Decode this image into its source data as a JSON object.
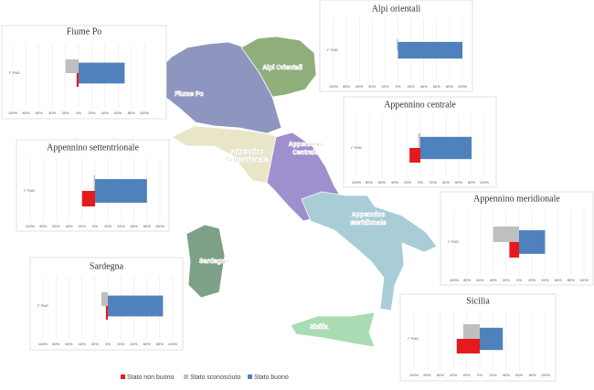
{
  "legend": [
    {
      "name": "Stato non buono",
      "color": "#e41a1c"
    },
    {
      "name": "Stato sconosciuto",
      "color": "#bfbfbf"
    },
    {
      "name": "Stato buono",
      "color": "#4f81bd"
    }
  ],
  "map": {
    "regions": [
      {
        "lines": [
          "Fiume Po"
        ]
      },
      {
        "lines": [
          "Alpi Orientali"
        ]
      },
      {
        "lines": [
          "Appennino",
          "Settentrionale"
        ]
      },
      {
        "lines": [
          "Appennino",
          "Centrale"
        ]
      },
      {
        "lines": [
          "Appennino",
          "Meridionale"
        ]
      },
      {
        "lines": [
          "Sardegna"
        ]
      },
      {
        "lines": [
          "Sicilia"
        ]
      }
    ]
  },
  "chart_data": [
    {
      "type": "bar",
      "title": "Fiume Po",
      "categories": [
        "I° PdG"
      ],
      "series": [
        {
          "values": [
            -3
          ]
        },
        {
          "values": [
            -20
          ]
        },
        {
          "values": [
            70
          ]
        }
      ],
      "xlim": [
        -100,
        100
      ],
      "xticks": [
        {
          "value": -100,
          "label": "100%"
        },
        {
          "value": -80,
          "label": "80%"
        },
        {
          "value": -60,
          "label": "60%"
        },
        {
          "value": -40,
          "label": "40%"
        },
        {
          "value": -20,
          "label": "20%"
        },
        {
          "value": 0,
          "label": "0%"
        },
        {
          "value": 20,
          "label": "20%"
        },
        {
          "value": 40,
          "label": "40%"
        },
        {
          "value": 60,
          "label": "60%"
        },
        {
          "value": 80,
          "label": "80%"
        },
        {
          "value": 100,
          "label": "100%"
        }
      ]
    },
    {
      "type": "bar",
      "title": "Alpi orientali",
      "categories": [
        "I° PdG"
      ],
      "series": [
        {
          "values": [
            0
          ]
        },
        {
          "values": [
            -2
          ]
        },
        {
          "values": [
            100
          ]
        }
      ],
      "xlim": [
        -100,
        100
      ],
      "xticks": [
        {
          "value": -100,
          "label": "100%"
        },
        {
          "value": -80,
          "label": "80%"
        },
        {
          "value": -60,
          "label": "60%"
        },
        {
          "value": -40,
          "label": "40%"
        },
        {
          "value": -20,
          "label": "20%"
        },
        {
          "value": 0,
          "label": "0%"
        },
        {
          "value": 20,
          "label": "20%"
        },
        {
          "value": 40,
          "label": "40%"
        },
        {
          "value": 60,
          "label": "60%"
        },
        {
          "value": 80,
          "label": "80%"
        },
        {
          "value": 100,
          "label": "100%"
        }
      ]
    },
    {
      "type": "bar",
      "title": "Appennino centrale",
      "categories": [
        "I° PdG"
      ],
      "series": [
        {
          "values": [
            -17
          ]
        },
        {
          "values": [
            -3
          ]
        },
        {
          "values": [
            80
          ]
        }
      ],
      "xlim": [
        -100,
        100
      ],
      "xticks": [
        {
          "value": -100,
          "label": "100%"
        },
        {
          "value": -80,
          "label": "80%"
        },
        {
          "value": -60,
          "label": "60%"
        },
        {
          "value": -40,
          "label": "40%"
        },
        {
          "value": -20,
          "label": "20%"
        },
        {
          "value": 0,
          "label": "0%"
        },
        {
          "value": 20,
          "label": "20%"
        },
        {
          "value": 40,
          "label": "40%"
        },
        {
          "value": 60,
          "label": "60%"
        },
        {
          "value": 80,
          "label": "80%"
        },
        {
          "value": 100,
          "label": "100%"
        }
      ]
    },
    {
      "type": "bar",
      "title": "Appennino settentrionale",
      "categories": [
        "I° PdG"
      ],
      "series": [
        {
          "values": [
            -20
          ]
        },
        {
          "values": [
            -2
          ]
        },
        {
          "values": [
            80
          ]
        }
      ],
      "xlim": [
        -100,
        100
      ],
      "xticks": [
        {
          "value": -100,
          "label": "100%"
        },
        {
          "value": -80,
          "label": "80%"
        },
        {
          "value": -60,
          "label": "60%"
        },
        {
          "value": -40,
          "label": "40%"
        },
        {
          "value": -20,
          "label": "20%"
        },
        {
          "value": 0,
          "label": "0%"
        },
        {
          "value": 20,
          "label": "20%"
        },
        {
          "value": 40,
          "label": "40%"
        },
        {
          "value": 60,
          "label": "60%"
        },
        {
          "value": 80,
          "label": "80%"
        },
        {
          "value": 100,
          "label": "100%"
        }
      ]
    },
    {
      "type": "bar",
      "title": "Appennino meridionale",
      "categories": [
        "I° PdG"
      ],
      "series": [
        {
          "values": [
            -15
          ]
        },
        {
          "values": [
            -40
          ]
        },
        {
          "values": [
            40
          ]
        }
      ],
      "xlim": [
        -100,
        100
      ],
      "xticks": [
        {
          "value": -100,
          "label": "100%"
        },
        {
          "value": -80,
          "label": "80%"
        },
        {
          "value": -60,
          "label": "60%"
        },
        {
          "value": -40,
          "label": "40%"
        },
        {
          "value": -20,
          "label": "20%"
        },
        {
          "value": 0,
          "label": "0%"
        },
        {
          "value": 20,
          "label": "20%"
        },
        {
          "value": 40,
          "label": "40%"
        },
        {
          "value": 60,
          "label": "60%"
        },
        {
          "value": 80,
          "label": "80%"
        },
        {
          "value": 100,
          "label": "100%"
        }
      ]
    },
    {
      "type": "bar",
      "title": "Sardegna",
      "categories": [
        "I° PdG"
      ],
      "series": [
        {
          "values": [
            -3
          ]
        },
        {
          "values": [
            -10
          ]
        },
        {
          "values": [
            85
          ]
        }
      ],
      "xlim": [
        -100,
        100
      ],
      "xticks": [
        {
          "value": -100,
          "label": "100%"
        },
        {
          "value": -80,
          "label": "80%"
        },
        {
          "value": -60,
          "label": "60%"
        },
        {
          "value": -40,
          "label": "40%"
        },
        {
          "value": -20,
          "label": "20%"
        },
        {
          "value": 0,
          "label": "0%"
        },
        {
          "value": 20,
          "label": "20%"
        },
        {
          "value": 40,
          "label": "40%"
        },
        {
          "value": 60,
          "label": "60%"
        },
        {
          "value": 80,
          "label": "80%"
        },
        {
          "value": 100,
          "label": "100%"
        }
      ]
    },
    {
      "type": "bar",
      "title": "Sicilia",
      "categories": [
        "I° PdG"
      ],
      "series": [
        {
          "values": [
            -35
          ]
        },
        {
          "values": [
            -25
          ]
        },
        {
          "values": [
            35
          ]
        }
      ],
      "xlim": [
        -100,
        100
      ],
      "xticks": [
        {
          "value": -100,
          "label": "100%"
        },
        {
          "value": -80,
          "label": "80%"
        },
        {
          "value": -60,
          "label": "60%"
        },
        {
          "value": -40,
          "label": "40%"
        },
        {
          "value": -20,
          "label": "20%"
        },
        {
          "value": 0,
          "label": "0%"
        },
        {
          "value": 20,
          "label": "20%"
        },
        {
          "value": 40,
          "label": "40%"
        },
        {
          "value": 60,
          "label": "60%"
        },
        {
          "value": 80,
          "label": "80%"
        },
        {
          "value": 100,
          "label": "100%"
        }
      ]
    }
  ]
}
